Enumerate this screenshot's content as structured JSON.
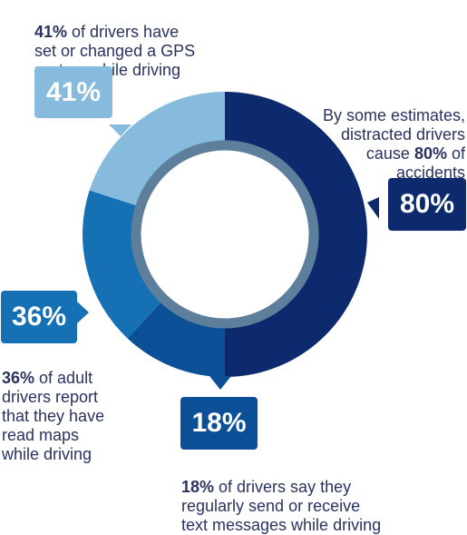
{
  "chart_data": {
    "type": "pie",
    "style": "donut",
    "segments": [
      {
        "label": "80%",
        "value": 50,
        "color": "#0d2a6e",
        "caption_strong": "80%",
        "caption_pre": "By some estimates,\ndistracted drivers\ncause ",
        "caption_post": " of\naccidents"
      },
      {
        "label": "18%",
        "value": 12,
        "color": "#0b4f96",
        "caption_strong": "18%",
        "caption_pre": "",
        "caption_post": " of drivers say they\nregularly send or receive\ntext messages while driving"
      },
      {
        "label": "36%",
        "value": 18,
        "color": "#1570b4",
        "caption_strong": "36%",
        "caption_pre": "",
        "caption_post": " of adult\ndrivers report\nthat they have\nread maps\nwhile driving"
      },
      {
        "label": "41%",
        "value": 20,
        "color": "#87bbde",
        "caption_strong": "41%",
        "caption_pre": "",
        "caption_post": " of drivers have\nset or changed a GPS\nsystem while driving"
      }
    ],
    "inner_ring_color": "#5e7f9c"
  }
}
